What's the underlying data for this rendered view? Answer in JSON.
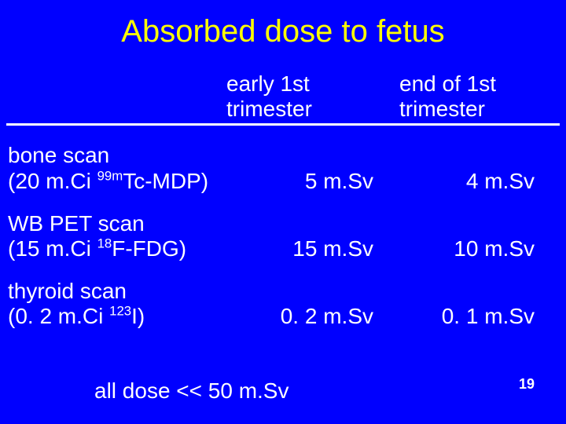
{
  "colors": {
    "background": "#0000ff",
    "title": "#ffff00",
    "text": "#ffffff",
    "rule": "#ffffff"
  },
  "typography": {
    "title_fontsize": 40,
    "body_fontsize": 28,
    "footer_fontsize": 28,
    "pagenum_fontsize": 18
  },
  "title": "Absorbed dose to fetus",
  "columns": {
    "early": [
      "early 1st",
      "trimester"
    ],
    "end": [
      "end of 1st",
      "trimester"
    ]
  },
  "rows": [
    {
      "label_line1": "bone scan",
      "label_line2_pre": "(20 m.Ci ",
      "label_line2_sup": "99m",
      "label_line2_post": "Tc-MDP)",
      "early": "5 m.Sv",
      "end": "4 m.Sv"
    },
    {
      "label_line1": "WB PET scan",
      "label_line2_pre": "(15 m.Ci ",
      "label_line2_sup": "18",
      "label_line2_post": "F-FDG)",
      "early": "15 m.Sv",
      "end": "10 m.Sv"
    },
    {
      "label_line1": "thyroid scan",
      "label_line2_pre": "(0. 2 m.Ci ",
      "label_line2_sup": "123",
      "label_line2_post": "I)",
      "early": "0. 2 m.Sv",
      "end": "0. 1 m.Sv"
    }
  ],
  "footer": "all dose << 50 m.Sv",
  "page_number": "19"
}
